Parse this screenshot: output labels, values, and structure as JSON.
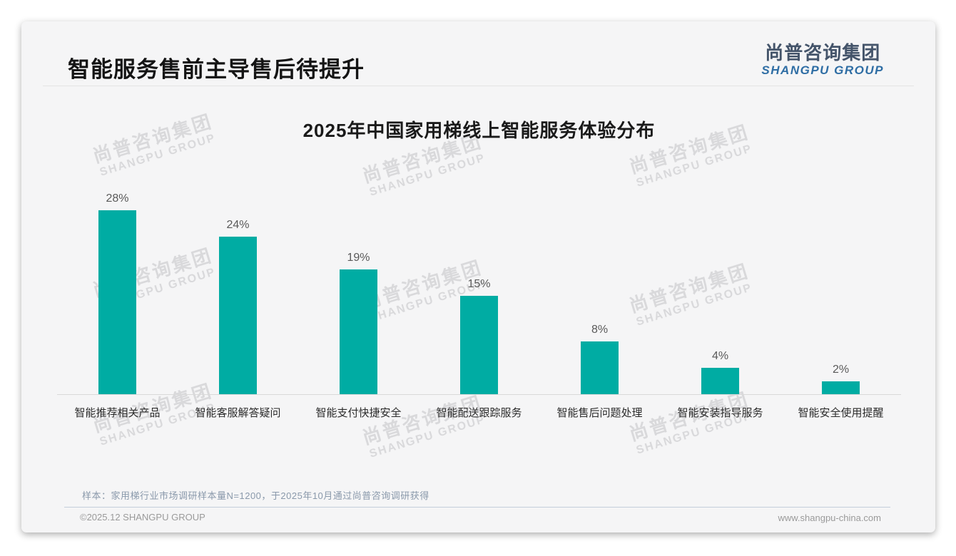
{
  "page": {
    "title": "智能服务售前主导售后待提升",
    "logo": {
      "cn": "尚普咨询集团",
      "en": "SHANGPU GROUP"
    },
    "watermark": {
      "cn": "尚普咨询集团",
      "en": "SHANGPU GROUP"
    },
    "sample_note": "样本：家用梯行业市场调研样本量N=1200，于2025年10月通过尚普咨询调研获得",
    "footer": {
      "copyright": "©2025.12 SHANGPU GROUP",
      "website": "www.shangpu-china.com"
    }
  },
  "chart_data": {
    "type": "bar",
    "title": "2025年中国家用梯线上智能服务体验分布",
    "categories": [
      "智能推荐相关产品",
      "智能客服解答疑问",
      "智能支付快捷安全",
      "智能配送跟踪服务",
      "智能售后问题处理",
      "智能安装指导服务",
      "智能安全使用提醒"
    ],
    "values": [
      28,
      24,
      19,
      15,
      8,
      4,
      2
    ],
    "data_labels": [
      "28%",
      "24%",
      "19%",
      "15%",
      "8%",
      "4%",
      "2%"
    ],
    "xlabel": "",
    "ylabel": "",
    "ylim": [
      0,
      30
    ],
    "grid": false,
    "legend": false,
    "bar_color": "#00aca3"
  },
  "colors": {
    "accent_teal": "#00aca3",
    "logo_slate": "#44546a",
    "logo_blue": "#2e6da4",
    "note_gray_blue": "#8a99ab",
    "footer_gray": "#9a9a9a",
    "card_bg": "#f5f5f6"
  }
}
